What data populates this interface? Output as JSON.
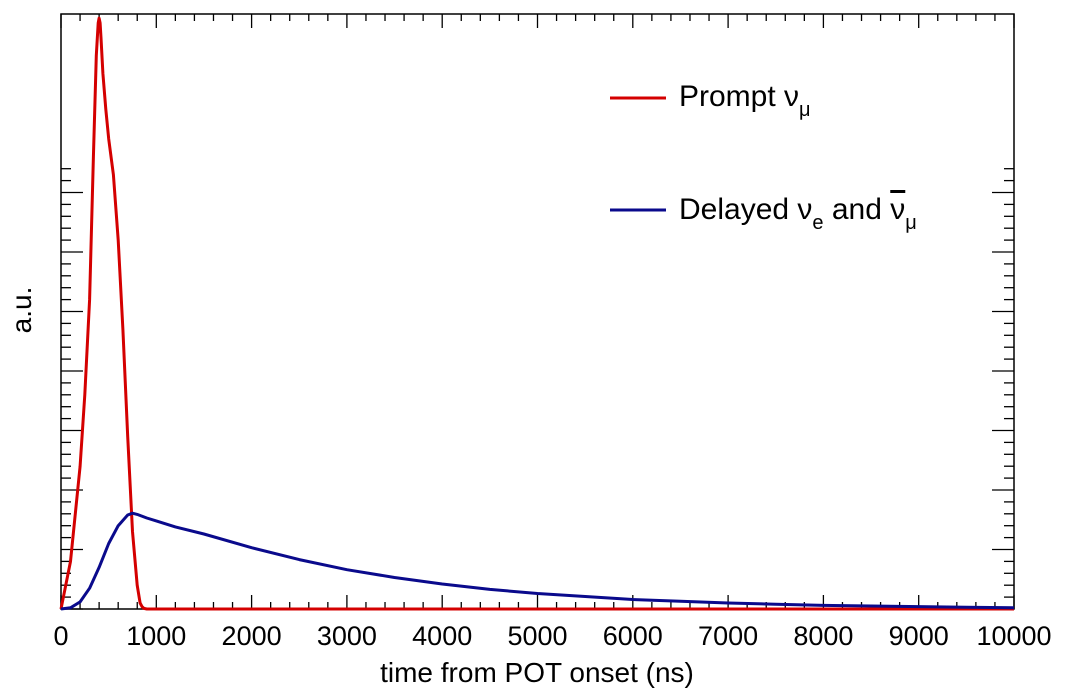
{
  "chart_data": {
    "type": "line",
    "xlabel": "time from POT onset (ns)",
    "ylabel": "a.u.",
    "xlim": [
      0,
      10000
    ],
    "ylim": [
      0,
      1.0
    ],
    "x_ticks": [
      "0",
      "1000",
      "2000",
      "3000",
      "4000",
      "5000",
      "6000",
      "7000",
      "8000",
      "9000",
      "10000"
    ],
    "grid": false,
    "legend_position": "top-right",
    "series": [
      {
        "name": "Prompt νμ",
        "legend_main": "Prompt ν",
        "legend_sub": "μ",
        "color": "#d40000",
        "x": [
          0,
          100,
          200,
          250,
          300,
          340,
          370,
          390,
          400,
          410,
          420,
          440,
          470,
          500,
          550,
          600,
          650,
          700,
          750,
          800,
          830,
          850,
          870,
          900,
          1000,
          1500,
          2000,
          3000,
          4000,
          5000,
          6000,
          7000,
          8000,
          9000,
          10000
        ],
        "y": [
          0,
          0.08,
          0.24,
          0.36,
          0.52,
          0.76,
          0.93,
          0.985,
          0.993,
          0.985,
          0.96,
          0.9,
          0.84,
          0.79,
          0.73,
          0.62,
          0.47,
          0.29,
          0.13,
          0.04,
          0.01,
          0.004,
          0.001,
          0,
          0,
          0,
          0,
          0,
          0,
          0,
          0,
          0,
          0,
          0,
          0
        ]
      },
      {
        "name": "Delayed νe and ν̄μ",
        "legend_main": "Delayed ν",
        "legend_sub1": "e",
        "legend_mid": " and ",
        "legend_nu": "ν",
        "legend_sub2": "μ",
        "color": "#0a0a8c",
        "x": [
          0,
          100,
          200,
          300,
          400,
          500,
          600,
          700,
          750,
          800,
          900,
          1000,
          1200,
          1500,
          2000,
          2500,
          3000,
          3500,
          4000,
          4500,
          5000,
          5500,
          6000,
          6500,
          7000,
          7500,
          8000,
          8500,
          9000,
          9500,
          10000
        ],
        "y": [
          0,
          0.002,
          0.012,
          0.035,
          0.07,
          0.11,
          0.14,
          0.158,
          0.161,
          0.159,
          0.153,
          0.148,
          0.138,
          0.126,
          0.103,
          0.083,
          0.066,
          0.053,
          0.042,
          0.033,
          0.026,
          0.021,
          0.016,
          0.013,
          0.01,
          0.008,
          0.006,
          0.005,
          0.004,
          0.003,
          0.002
        ]
      }
    ]
  }
}
